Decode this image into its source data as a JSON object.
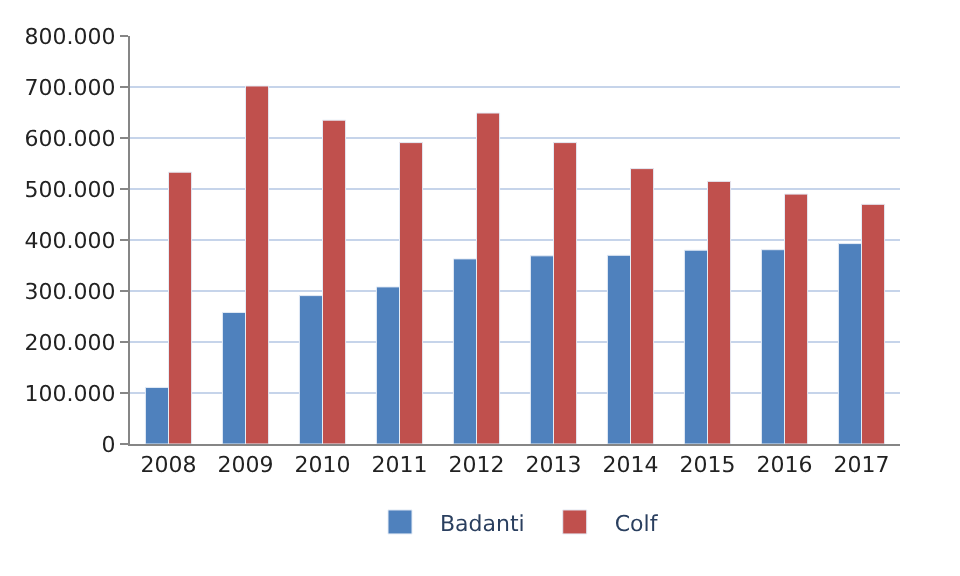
{
  "chart_data": {
    "type": "bar",
    "categories": [
      "2008",
      "2009",
      "2010",
      "2011",
      "2012",
      "2013",
      "2014",
      "2015",
      "2016",
      "2017"
    ],
    "series": [
      {
        "name": "Badanti",
        "color": "#4f81bd",
        "values": [
          111000,
          258000,
          291000,
          308000,
          363000,
          369000,
          370000,
          380000,
          381000,
          393000
        ]
      },
      {
        "name": "Colf",
        "color": "#c0504d",
        "values": [
          533000,
          702000,
          635000,
          591000,
          649000,
          591000,
          540000,
          515000,
          490000,
          470000
        ]
      }
    ],
    "ylim": [
      0,
      800000
    ],
    "yticks": [
      {
        "value": 0,
        "label": "0"
      },
      {
        "value": 100000,
        "label": "100.000"
      },
      {
        "value": 200000,
        "label": "200.000"
      },
      {
        "value": 300000,
        "label": "300.000"
      },
      {
        "value": 400000,
        "label": "400.000"
      },
      {
        "value": 500000,
        "label": "500.000"
      },
      {
        "value": 600000,
        "label": "600.000"
      },
      {
        "value": 700000,
        "label": "700.000"
      },
      {
        "value": 800000,
        "label": "800.000"
      }
    ],
    "grid": "y",
    "legend": "bottom"
  }
}
